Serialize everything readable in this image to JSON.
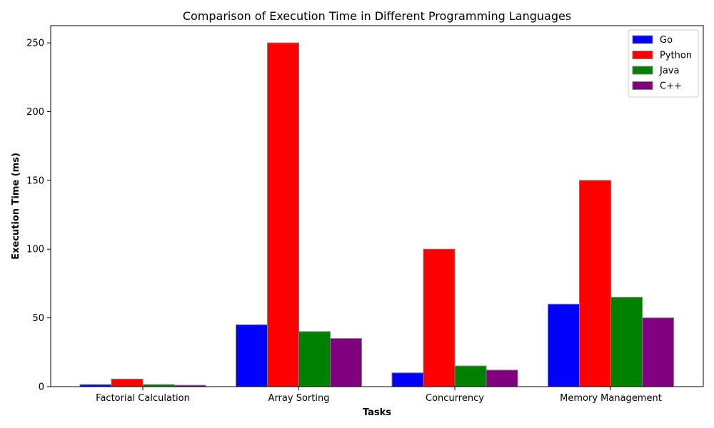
{
  "chart_data": {
    "type": "bar",
    "title": "Comparison of Execution Time in Different Programming Languages",
    "xlabel": "Tasks",
    "ylabel": "Execution Time (ms)",
    "categories": [
      "Factorial Calculation",
      "Array Sorting",
      "Concurrency",
      "Memory Management"
    ],
    "series": [
      {
        "name": "Go",
        "color": "#0000ff",
        "values": [
          1.5,
          45,
          10,
          60
        ]
      },
      {
        "name": "Python",
        "color": "#ff0000",
        "values": [
          5.5,
          250,
          100,
          150
        ]
      },
      {
        "name": "Java",
        "color": "#008000",
        "values": [
          1.5,
          40,
          15,
          65
        ]
      },
      {
        "name": "C++",
        "color": "#800080",
        "values": [
          1,
          35,
          12,
          50
        ]
      }
    ],
    "ylim": [
      0,
      262.5
    ],
    "yticks": [
      0,
      50,
      100,
      150,
      200,
      250
    ],
    "legend_position": "top-right",
    "grid": false,
    "bar_edge_color": "#808080"
  }
}
